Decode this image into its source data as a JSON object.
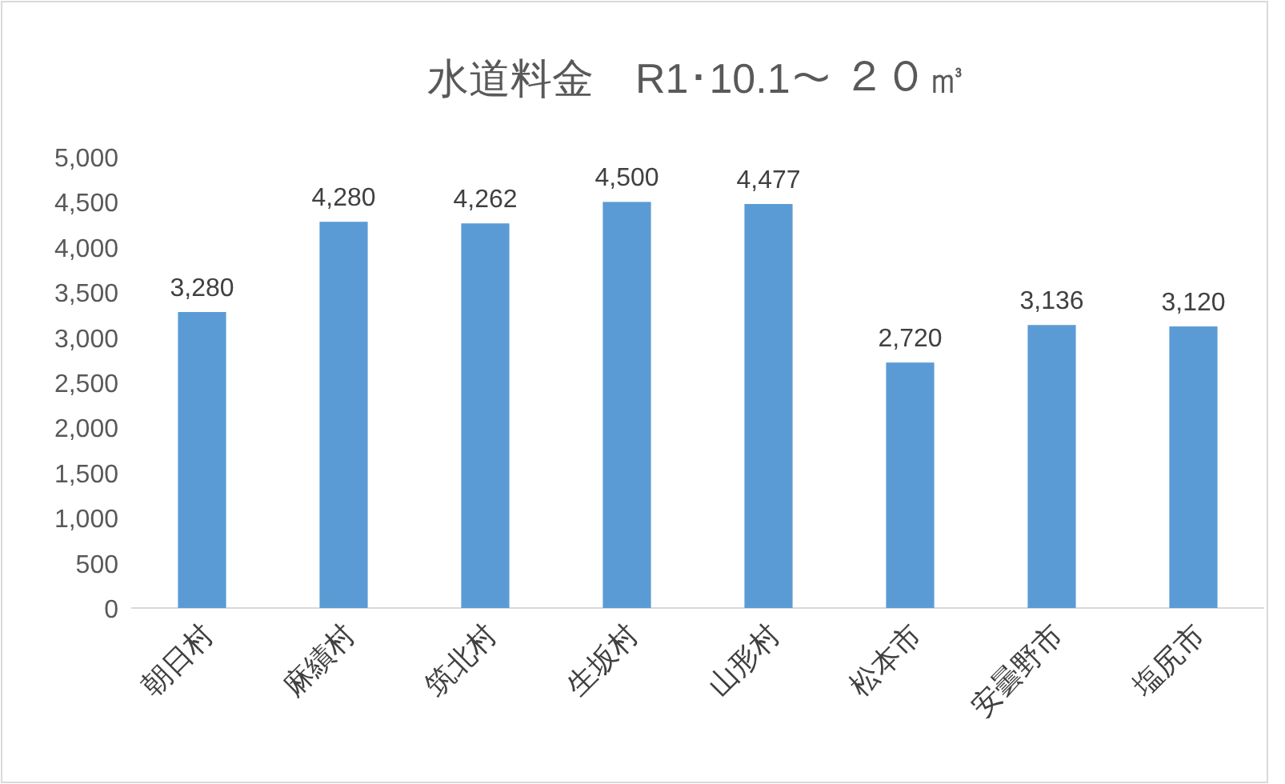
{
  "chart_data": {
    "type": "bar",
    "title": "水道料金　R1･10.1～ ２０㎥",
    "categories": [
      "朝日村",
      "麻績村",
      "筑北村",
      "生坂村",
      "山形村",
      "松本市",
      "安曇野市",
      "塩尻市"
    ],
    "values": [
      3280,
      4280,
      4262,
      4500,
      4477,
      2720,
      3136,
      3120
    ],
    "color": "#5b9bd5",
    "ylim": [
      0,
      5000
    ],
    "yticks": [
      0,
      500,
      {
        "value": 1000,
        "label": "1,000"
      },
      {
        "value": 1500,
        "label": "1,500"
      },
      {
        "value": 2000,
        "label": "2,000"
      },
      {
        "value": 2500,
        "label": "2,500"
      },
      {
        "value": 3000,
        "label": "3,000"
      },
      {
        "value": 3500,
        "label": "3,500"
      },
      {
        "value": 4000,
        "label": "4,000"
      },
      {
        "value": 4500,
        "label": "4,500"
      },
      {
        "value": 5000,
        "label": "5,000"
      }
    ],
    "value_labels": [
      "3,280",
      "4,280",
      "4,262",
      "4,500",
      "4,477",
      "2,720",
      "3,136",
      "3,120"
    ],
    "grid": false
  }
}
